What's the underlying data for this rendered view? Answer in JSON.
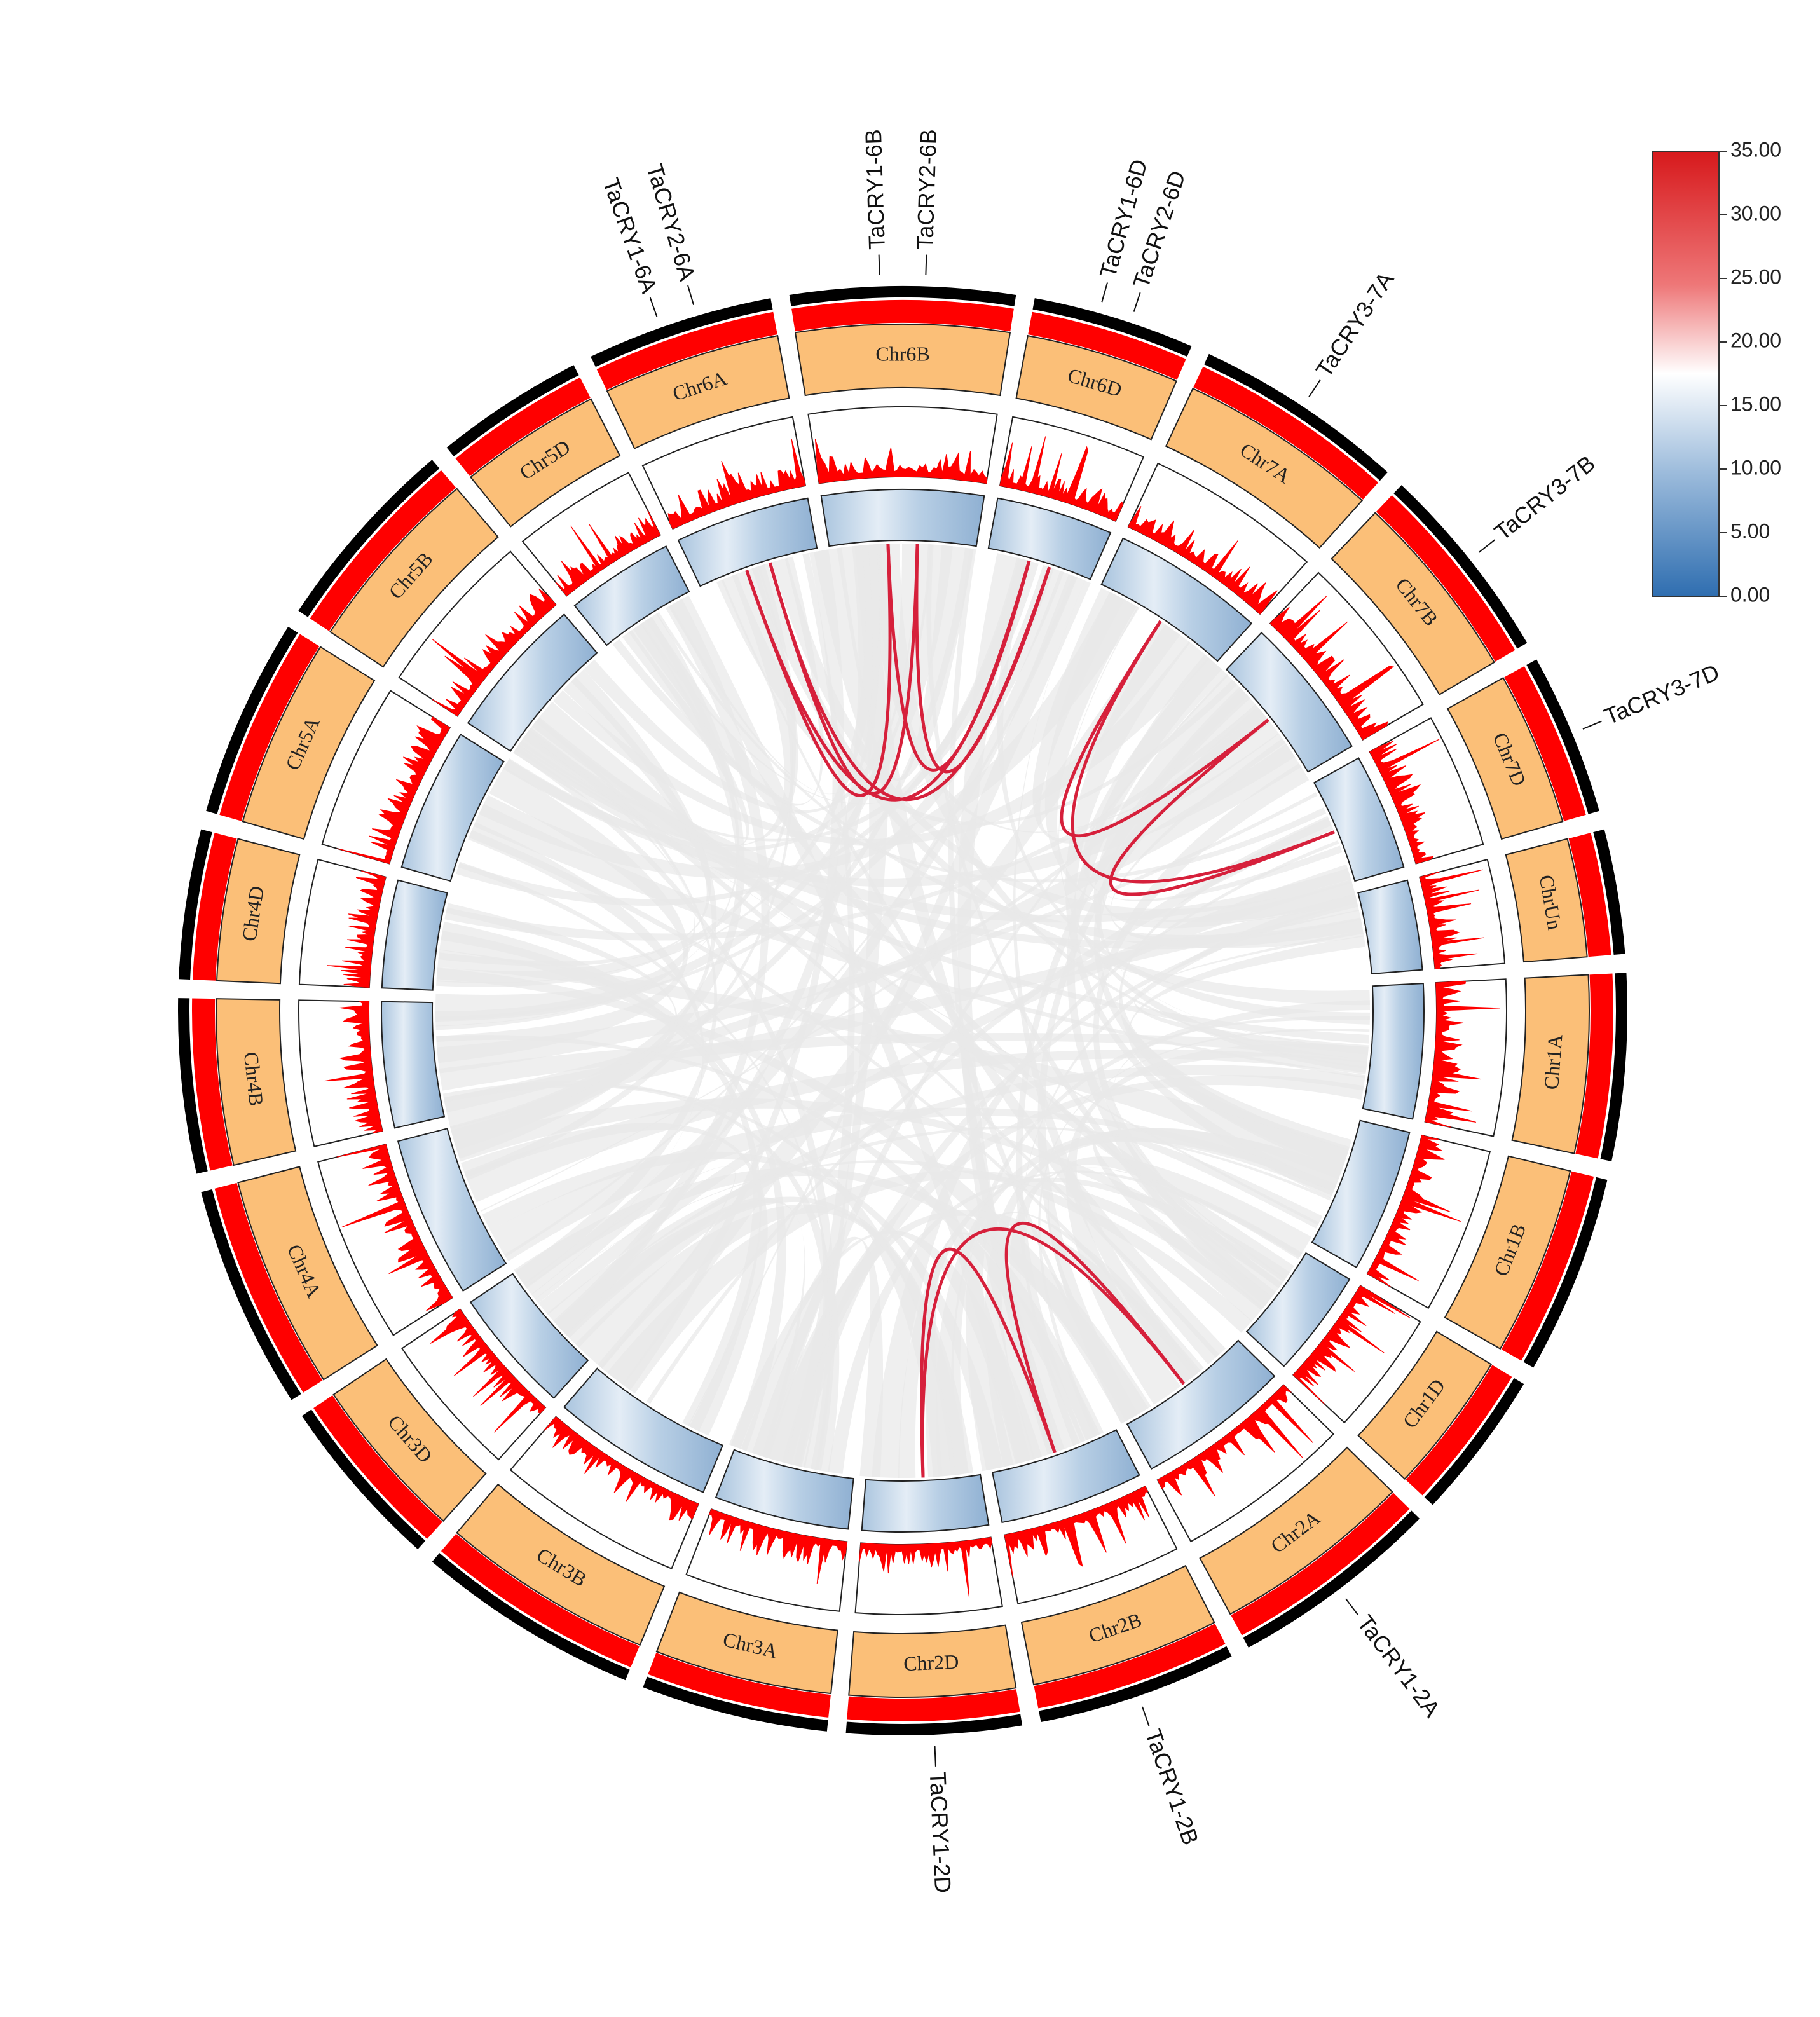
{
  "chart_data": {
    "type": "circos",
    "title": "",
    "chromosomes": [
      {
        "name": "Chr1A",
        "label": "Chr1A"
      },
      {
        "name": "Chr1B",
        "label": "Chr1B"
      },
      {
        "name": "Chr1D",
        "label": "Chr1D"
      },
      {
        "name": "Chr2A",
        "label": "Chr2A"
      },
      {
        "name": "Chr2B",
        "label": "Chr2B"
      },
      {
        "name": "Chr2D",
        "label": "Chr2D"
      },
      {
        "name": "Chr3A",
        "label": "Chr3A"
      },
      {
        "name": "Chr3B",
        "label": "Chr3B"
      },
      {
        "name": "Chr3D",
        "label": "Chr3D"
      },
      {
        "name": "Chr4A",
        "label": "Chr4A"
      },
      {
        "name": "Chr4B",
        "label": "Chr4B"
      },
      {
        "name": "Chr4D",
        "label": "Chr4D"
      },
      {
        "name": "Chr5A",
        "label": "Chr5A"
      },
      {
        "name": "Chr5B",
        "label": "Chr5B"
      },
      {
        "name": "Chr5D",
        "label": "Chr5D"
      },
      {
        "name": "Chr6A",
        "label": "Chr6A"
      },
      {
        "name": "Chr6B",
        "label": "Chr6B"
      },
      {
        "name": "Chr6D",
        "label": "Chr6D"
      },
      {
        "name": "Chr7A",
        "label": "Chr7A"
      },
      {
        "name": "Chr7B",
        "label": "Chr7B"
      },
      {
        "name": "Chr7D",
        "label": "Chr7D"
      },
      {
        "name": "ChrUn",
        "label": "ChrUn"
      }
    ],
    "genes": [
      {
        "name": "TaCRY1-2A",
        "chromosome": "Chr2A"
      },
      {
        "name": "TaCRY1-2B",
        "chromosome": "Chr2B"
      },
      {
        "name": "TaCRY1-2D",
        "chromosome": "Chr2D"
      },
      {
        "name": "TaCRY1-6A",
        "chromosome": "Chr6A"
      },
      {
        "name": "TaCRY2-6A",
        "chromosome": "Chr6A"
      },
      {
        "name": "TaCRY1-6B",
        "chromosome": "Chr6B"
      },
      {
        "name": "TaCRY2-6B",
        "chromosome": "Chr6B"
      },
      {
        "name": "TaCRY1-6D",
        "chromosome": "Chr6D"
      },
      {
        "name": "TaCRY2-6D",
        "chromosome": "Chr6D"
      },
      {
        "name": "TaCRY3-7A",
        "chromosome": "Chr7A"
      },
      {
        "name": "TaCRY3-7B",
        "chromosome": "Chr7B"
      },
      {
        "name": "TaCRY3-7D",
        "chromosome": "Chr7D"
      }
    ],
    "duplications": [
      [
        "Chr6A",
        "Chr6B"
      ],
      [
        "Chr6A",
        "Chr6D"
      ],
      [
        "Chr6B",
        "Chr6D"
      ],
      [
        "Chr6A",
        "Chr6B"
      ],
      [
        "Chr6B",
        "Chr6D"
      ],
      [
        "Chr6A",
        "Chr6D"
      ],
      [
        "Chr7A",
        "Chr7B"
      ],
      [
        "Chr7A",
        "Chr7D"
      ],
      [
        "Chr7B",
        "Chr7D"
      ],
      [
        "Chr2A",
        "Chr2B"
      ],
      [
        "Chr2A",
        "Chr2D"
      ],
      [
        "Chr2B",
        "Chr2D"
      ]
    ],
    "legend": {
      "type": "colorbar",
      "ticks": [
        "35.00",
        "30.00",
        "25.00",
        "20.00",
        "15.00",
        "10.00",
        "5.00",
        "0.00"
      ],
      "min": 0,
      "max": 35,
      "colors": {
        "low": "#2f6eb0",
        "mid": "#ffffff",
        "high": "#d7191c"
      }
    },
    "colors": {
      "chromosome_box": "#fbbf78",
      "density_bars": "#ff0000",
      "outer_ring": "#000000",
      "synteny_links": "#e8e8e8",
      "duplication_links": "#d6203b",
      "heatmap_low": "#9fbcd8",
      "heatmap_high": "#ffffff"
    }
  }
}
